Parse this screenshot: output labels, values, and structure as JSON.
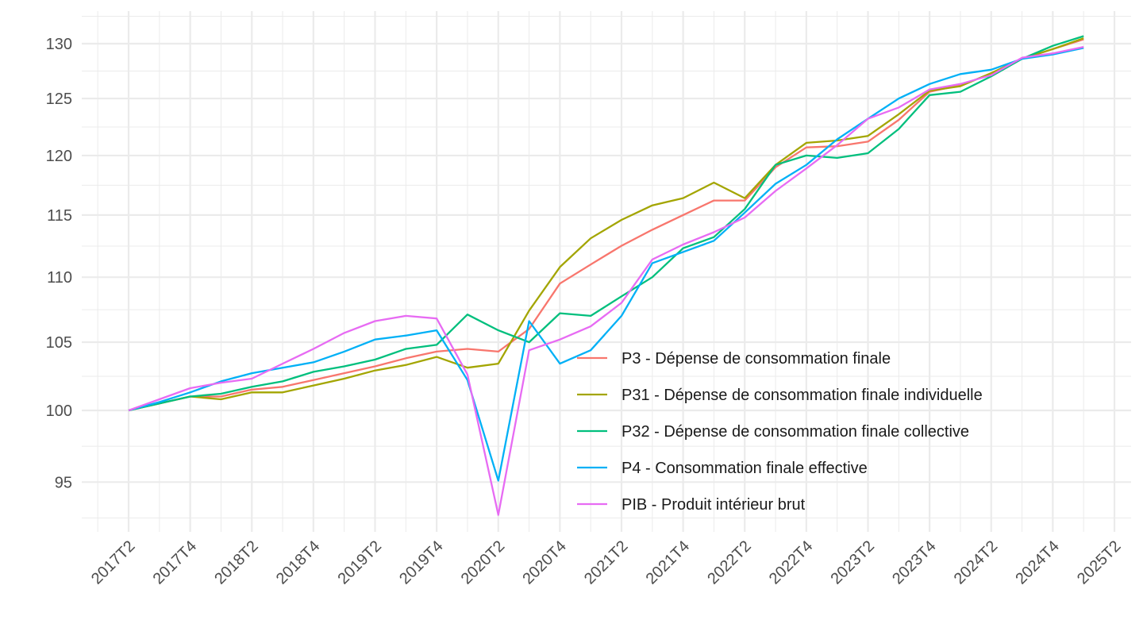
{
  "chart_data": {
    "type": "line",
    "title": "",
    "xlabel": "",
    "ylabel": "",
    "scale": "log",
    "grid": true,
    "legend_position": "bottom-right inside plot",
    "x": [
      "2017T2",
      "2017T3",
      "2017T4",
      "2018T1",
      "2018T2",
      "2018T3",
      "2018T4",
      "2019T1",
      "2019T2",
      "2019T3",
      "2019T4",
      "2020T1",
      "2020T2",
      "2020T3",
      "2020T4",
      "2021T1",
      "2021T2",
      "2021T3",
      "2021T4",
      "2022T1",
      "2022T2",
      "2022T3",
      "2022T4",
      "2023T1",
      "2023T2",
      "2023T3",
      "2023T4",
      "2024T1",
      "2024T2",
      "2024T3",
      "2024T4",
      "2025T1"
    ],
    "x_tick_labels": [
      "2017T2",
      "2017T4",
      "2018T2",
      "2018T4",
      "2019T2",
      "2019T4",
      "2020T2",
      "2020T4",
      "2021T2",
      "2021T4",
      "2022T2",
      "2022T4",
      "2023T2",
      "2023T4",
      "2024T2",
      "2024T4",
      "2025T2"
    ],
    "x_range": [
      "2017T2",
      "2025T2"
    ],
    "y_ticks": [
      95,
      100,
      105,
      110,
      115,
      120,
      125,
      130
    ],
    "y_tick_labels": [
      "95",
      "100",
      "105",
      "110",
      "115",
      "120",
      "125",
      "130"
    ],
    "ylim": [
      92.5,
      131.5
    ],
    "series": [
      {
        "name": "P3 - Dépense de consommation finale",
        "color": "#F8766D",
        "values": [
          100.0,
          100.5,
          101.0,
          101.0,
          101.5,
          101.7,
          102.2,
          102.7,
          103.2,
          103.8,
          104.3,
          104.5,
          104.3,
          106.0,
          109.5,
          111.0,
          112.5,
          113.8,
          115.0,
          116.2,
          116.2,
          119.0,
          120.7,
          120.8,
          121.2,
          123.1,
          125.6,
          126.2,
          127.2,
          128.6,
          129.5,
          130.4
        ]
      },
      {
        "name": "P31 - Dépense de consommation finale individuelle",
        "color": "#A3A500",
        "values": [
          100.0,
          100.5,
          101.0,
          100.8,
          101.3,
          101.3,
          101.8,
          102.3,
          102.9,
          103.3,
          103.9,
          103.1,
          103.4,
          107.4,
          110.8,
          113.1,
          114.6,
          115.8,
          116.4,
          117.7,
          116.4,
          119.2,
          121.1,
          121.3,
          121.7,
          123.6,
          125.7,
          126.1,
          127.3,
          128.6,
          129.5,
          130.5
        ]
      },
      {
        "name": "P32 - Dépense de consommation finale collective",
        "color": "#00BF7D",
        "values": [
          100.0,
          100.5,
          101.0,
          101.2,
          101.7,
          102.1,
          102.8,
          103.2,
          103.7,
          104.5,
          104.8,
          107.1,
          105.9,
          105.0,
          107.2,
          107.0,
          108.5,
          110.0,
          112.3,
          113.2,
          115.5,
          119.2,
          120.0,
          119.8,
          120.2,
          122.3,
          125.3,
          125.6,
          127.0,
          128.6,
          129.8,
          130.7
        ]
      },
      {
        "name": "P4 - Consommation finale effective",
        "color": "#00B0F6",
        "values": [
          100.0,
          100.6,
          101.3,
          102.1,
          102.7,
          103.1,
          103.5,
          104.3,
          105.2,
          105.5,
          105.9,
          102.2,
          95.1,
          106.6,
          103.4,
          104.4,
          107.0,
          111.1,
          112.0,
          112.9,
          115.2,
          117.6,
          119.2,
          121.4,
          123.2,
          125.0,
          126.3,
          127.2,
          127.6,
          128.6,
          129.0,
          129.6
        ]
      },
      {
        "name": "PIB - Produit intérieur brut",
        "color": "#E76BF3",
        "values": [
          100.0,
          100.8,
          101.6,
          102.0,
          102.3,
          103.4,
          104.5,
          105.7,
          106.6,
          107.0,
          106.8,
          102.6,
          92.8,
          104.4,
          105.2,
          106.2,
          108.0,
          111.4,
          112.6,
          113.6,
          114.8,
          117.0,
          118.9,
          120.9,
          123.2,
          124.2,
          125.8,
          126.3,
          127.1,
          128.7,
          129.1,
          129.7
        ]
      }
    ]
  }
}
